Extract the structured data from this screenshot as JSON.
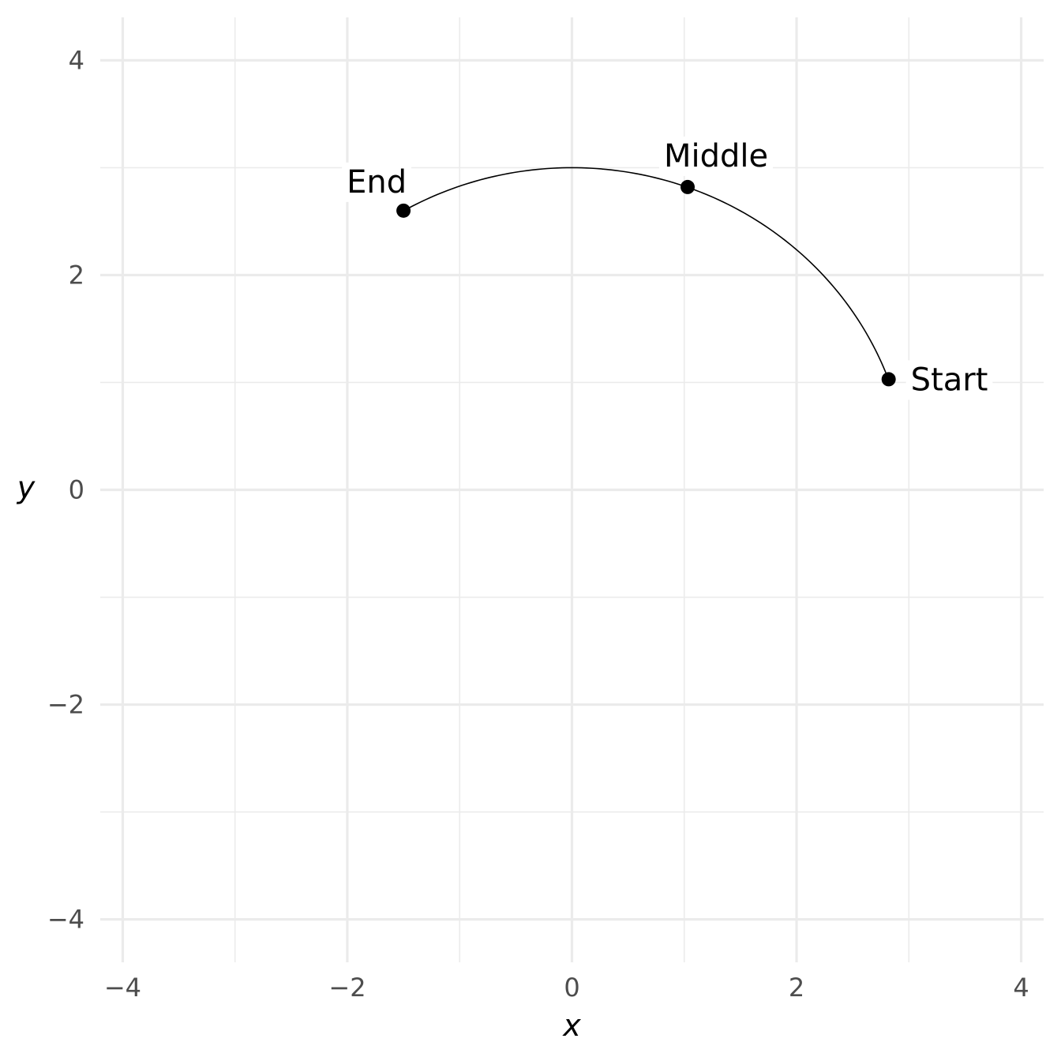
{
  "chart_data": {
    "type": "scatter",
    "title": "",
    "xlabel": "x",
    "ylabel": "y",
    "xlim": [
      -4.2,
      4.2
    ],
    "ylim": [
      -4.4,
      4.4
    ],
    "x_ticks": [
      -4,
      -2,
      0,
      2,
      4
    ],
    "y_ticks": [
      -4,
      -2,
      0,
      2,
      4
    ],
    "x_tick_labels": [
      "−4",
      "−2",
      "0",
      "2",
      "4"
    ],
    "y_tick_labels": [
      "−4",
      "−2",
      "0",
      "2",
      "4"
    ],
    "x_minor_ticks": [
      -3,
      -1,
      1,
      3
    ],
    "y_minor_ticks": [
      -3,
      -1,
      1,
      3
    ],
    "grid": true,
    "points": [
      {
        "label": "Start",
        "x": 2.82,
        "y": 1.03
      },
      {
        "label": "Middle",
        "x": 1.03,
        "y": 2.82
      },
      {
        "label": "End",
        "x": -1.5,
        "y": 2.6
      }
    ],
    "arc": {
      "center": [
        0,
        0
      ],
      "radius": 3,
      "from_point": "Start",
      "to_point": "End",
      "color": "#000000"
    },
    "point_color": "#000000"
  }
}
